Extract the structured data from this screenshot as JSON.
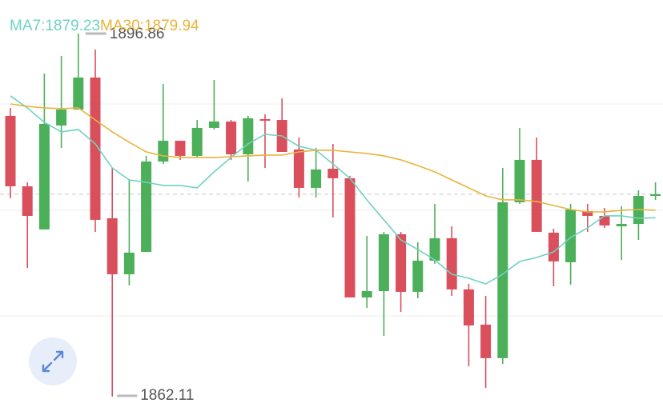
{
  "chart_data": {
    "type": "candlestick",
    "up_color": "#4caf5a",
    "down_color": "#d9505c",
    "ylim": [
      1861.5,
      1900.07
    ],
    "ygrid": [
      1890.12,
      1879.94,
      1869.84
    ],
    "open": [
      1888.98,
      1882.24,
      1878.11,
      1888.06,
      1889.59,
      1892.65,
      1879.18,
      1873.82,
      1875.96,
      1884.61,
      1886.6,
      1885.15,
      1887.83,
      1888.44,
      1885.3,
      1888.67,
      1888.59,
      1885.76,
      1882.09,
      1883.92,
      1883.01,
      1871.6,
      1872.21,
      1877.65,
      1872.14,
      1875.12,
      1877.27,
      1872.37,
      1869.0,
      1865.79,
      1880.71,
      1884.77,
      1877.8,
      1874.97,
      1879.87,
      1879.41,
      1878.41,
      1878.64,
      1881.32
    ],
    "high": [
      1889.74,
      1882.62,
      1893.03,
      1894.72,
      1896.86,
      1895.33,
      1884.0,
      1882.85,
      1885.15,
      1892.04,
      1886.6,
      1888.59,
      1892.42,
      1888.59,
      1888.98,
      1889.13,
      1890.66,
      1886.91,
      1885.91,
      1886.3,
      1883.24,
      1877.5,
      1877.88,
      1877.88,
      1876.88,
      1880.56,
      1878.41,
      1872.9,
      1871.75,
      1884.0,
      1887.83,
      1886.91,
      1878.18,
      1880.56,
      1880.56,
      1880.17,
      1880.33,
      1881.86,
      1882.62
    ],
    "low": [
      1881.09,
      1874.43,
      1878.11,
      1885.91,
      1889.59,
      1877.88,
      1862.11,
      1872.75,
      1875.96,
      1884.38,
      1884.77,
      1884.92,
      1887.68,
      1884.77,
      1882.7,
      1884.0,
      1885.53,
      1881.17,
      1881.17,
      1879.26,
      1871.6,
      1870.61,
      1867.93,
      1870.22,
      1871.53,
      1874.82,
      1871.75,
      1865.02,
      1862.95,
      1865.25,
      1880.56,
      1877.88,
      1872.67,
      1872.83,
      1877.88,
      1878.26,
      1875.2,
      1877.11,
      1880.94
    ],
    "close": [
      1882.24,
      1879.41,
      1888.21,
      1889.59,
      1892.65,
      1879.03,
      1873.82,
      1875.89,
      1884.61,
      1886.6,
      1885.15,
      1887.83,
      1888.44,
      1885.3,
      1888.75,
      1888.52,
      1885.53,
      1882.09,
      1883.85,
      1883.01,
      1871.6,
      1872.21,
      1877.65,
      1872.14,
      1875.12,
      1877.27,
      1872.37,
      1868.92,
      1865.79,
      1880.71,
      1884.77,
      1877.88,
      1875.05,
      1880.02,
      1879.41,
      1878.49,
      1878.64,
      1881.32,
      1881.48
    ],
    "series": [
      {
        "name": "MA7:1879.23",
        "color": "#6fd2c2",
        "values": [
          1890.89,
          1889.74,
          1888.36,
          1887.45,
          1887.68,
          1886.3,
          1884.0,
          1882.85,
          1882.62,
          1882.32,
          1882.32,
          1882.09,
          1883.62,
          1885.0,
          1886.3,
          1887.22,
          1887.06,
          1886.07,
          1885.69,
          1884.38,
          1883.01,
          1880.94,
          1879.03,
          1877.11,
          1876.19,
          1875.2,
          1873.82,
          1873.44,
          1872.9,
          1873.82,
          1875.05,
          1875.43,
          1875.96,
          1877.34,
          1878.26,
          1879.41,
          1879.41,
          1879.18,
          1879.23
        ]
      },
      {
        "name": "MA30:1879.94",
        "color": "#e9b43c",
        "values": [
          1890.12,
          1889.89,
          1889.74,
          1889.67,
          1889.74,
          1888.59,
          1887.45,
          1886.45,
          1885.53,
          1885.15,
          1885.0,
          1885.0,
          1885.0,
          1885.07,
          1885.15,
          1885.23,
          1885.23,
          1885.53,
          1885.69,
          1885.69,
          1885.53,
          1885.38,
          1885.15,
          1884.77,
          1884.23,
          1883.62,
          1882.85,
          1882.09,
          1881.32,
          1880.94,
          1880.94,
          1880.79,
          1880.4,
          1880.02,
          1879.79,
          1879.79,
          1879.94,
          1880.02,
          1879.94
        ]
      }
    ]
  }
}
